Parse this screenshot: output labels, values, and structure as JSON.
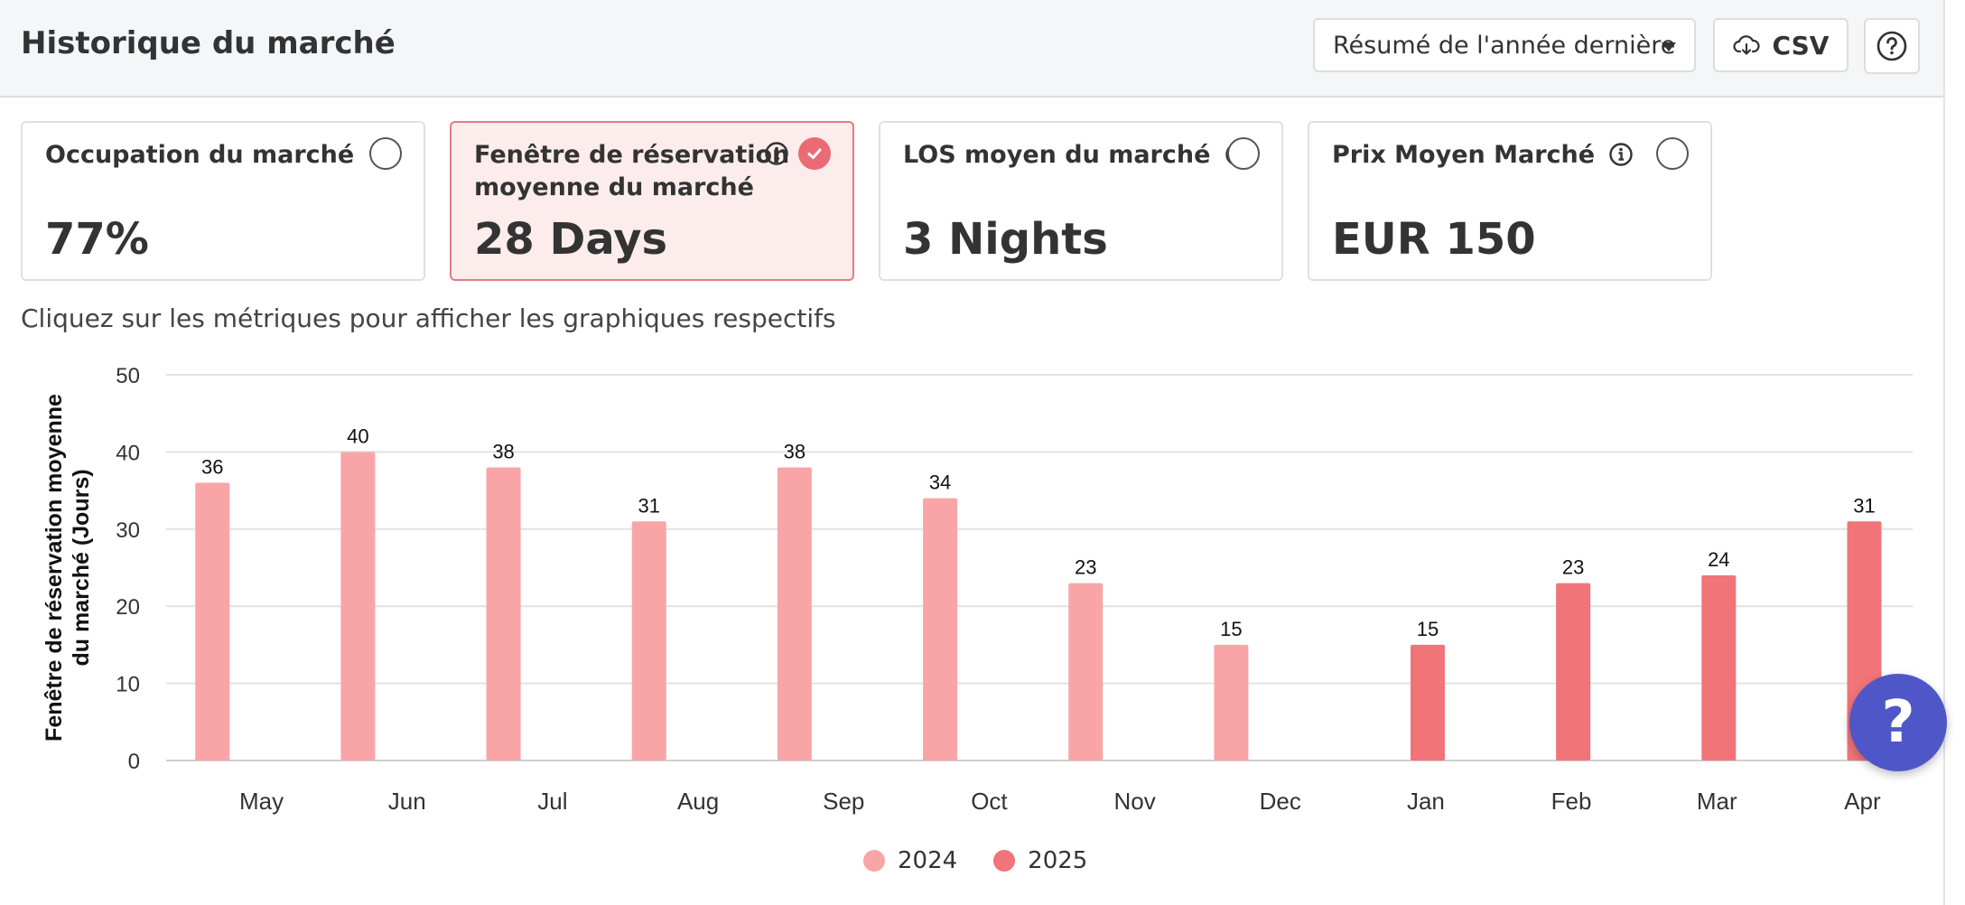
{
  "header": {
    "title": "Historique du marché",
    "period_select": "Résumé de l'année dernière",
    "csv_label": "CSV"
  },
  "metrics": [
    {
      "label_line1": "Occupation du marché",
      "label_line2": "",
      "value": "77%",
      "selected": false
    },
    {
      "label_line1": "Fenêtre de réservation",
      "label_line2": "moyenne du marché",
      "value": "28 Days",
      "selected": true
    },
    {
      "label_line1": "LOS moyen du marché",
      "label_line2": "",
      "value": "3 Nights",
      "selected": false
    },
    {
      "label_line1": "Prix Moyen Marché",
      "label_line2": "",
      "value": "EUR 150",
      "selected": false
    }
  ],
  "hint": "Cliquez sur les métriques pour afficher les graphiques respectifs",
  "colors": {
    "series_2024": "#f9a5a8",
    "series_2025": "#f07478",
    "selected_card_bg": "#fdecec",
    "fab": "#4f57c8"
  },
  "chart_data": {
    "type": "bar",
    "categories": [
      "May",
      "Jun",
      "Jul",
      "Aug",
      "Sep",
      "Oct",
      "Nov",
      "Dec",
      "Jan",
      "Feb",
      "Mar",
      "Apr"
    ],
    "series": [
      {
        "name": "2024",
        "values": [
          36,
          40,
          38,
          31,
          38,
          34,
          23,
          15,
          null,
          null,
          null,
          null
        ]
      },
      {
        "name": "2025",
        "values": [
          null,
          null,
          null,
          null,
          null,
          null,
          null,
          null,
          15,
          23,
          24,
          31
        ]
      }
    ],
    "ylabel_line1": "Fenêtre de réservation moyenne",
    "ylabel_line2": "du marché (Jours)",
    "ylim": [
      0,
      50
    ],
    "yticks": [
      0,
      10,
      20,
      30,
      40,
      50
    ],
    "grid": true,
    "legend": "bottom-center"
  }
}
